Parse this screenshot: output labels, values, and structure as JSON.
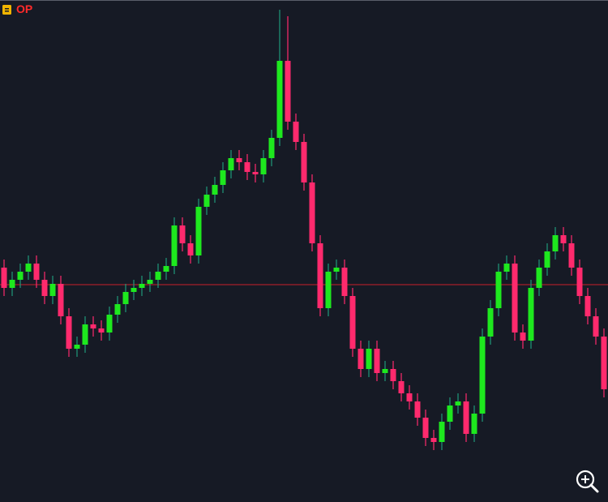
{
  "chart_data": {
    "type": "candlestick",
    "title": "OP",
    "open": [
      290,
      265,
      275,
      285,
      295,
      275,
      255,
      270,
      230,
      190,
      195,
      220,
      215,
      210,
      232,
      245,
      260,
      265,
      270,
      275,
      285,
      292,
      342,
      320,
      305,
      365,
      380,
      392,
      410,
      425,
      420,
      408,
      405,
      425,
      450,
      545,
      470,
      445,
      395,
      320,
      240,
      285,
      290,
      255,
      190,
      165,
      190,
      160,
      165,
      150,
      135,
      125,
      105,
      80,
      75,
      100,
      120,
      125,
      85,
      110,
      205,
      240,
      285,
      295,
      210,
      200,
      265,
      290,
      310,
      330,
      320,
      290,
      255,
      230,
      205
    ],
    "high": [
      300,
      285,
      295,
      305,
      305,
      285,
      280,
      280,
      240,
      205,
      230,
      230,
      225,
      242,
      255,
      270,
      275,
      280,
      285,
      295,
      302,
      352,
      352,
      330,
      375,
      390,
      402,
      420,
      435,
      435,
      430,
      418,
      435,
      460,
      608,
      600,
      480,
      455,
      405,
      330,
      295,
      300,
      300,
      265,
      200,
      200,
      200,
      175,
      175,
      160,
      145,
      135,
      115,
      90,
      110,
      130,
      135,
      135,
      120,
      215,
      250,
      295,
      305,
      305,
      220,
      275,
      300,
      320,
      340,
      340,
      330,
      300,
      265,
      240,
      215
    ],
    "low": [
      255,
      255,
      265,
      275,
      265,
      245,
      245,
      220,
      180,
      180,
      185,
      205,
      200,
      200,
      222,
      235,
      250,
      255,
      260,
      265,
      275,
      282,
      310,
      295,
      295,
      355,
      370,
      382,
      400,
      410,
      398,
      395,
      395,
      415,
      440,
      460,
      435,
      385,
      310,
      230,
      230,
      275,
      245,
      180,
      155,
      155,
      150,
      150,
      140,
      125,
      115,
      95,
      70,
      65,
      65,
      90,
      110,
      75,
      75,
      100,
      195,
      230,
      275,
      200,
      190,
      190,
      255,
      280,
      300,
      310,
      280,
      245,
      220,
      195,
      130
    ],
    "close": [
      265,
      275,
      285,
      295,
      275,
      255,
      270,
      230,
      190,
      195,
      220,
      215,
      210,
      232,
      245,
      260,
      265,
      270,
      275,
      285,
      292,
      342,
      320,
      305,
      365,
      380,
      392,
      410,
      425,
      420,
      408,
      405,
      425,
      450,
      545,
      470,
      445,
      395,
      320,
      240,
      285,
      290,
      255,
      190,
      165,
      190,
      160,
      165,
      150,
      135,
      125,
      105,
      80,
      75,
      100,
      120,
      125,
      85,
      110,
      205,
      240,
      285,
      295,
      210,
      200,
      265,
      290,
      310,
      330,
      320,
      290,
      255,
      230,
      205,
      140
    ],
    "up_color": "#1ee81e",
    "down_color": "#ff2a6d",
    "up_wick_color": "#1f9a7a",
    "down_wick_color": "#ff2a6d",
    "ylim": [
      0,
      620
    ],
    "price_line": 269,
    "price_line_color": "#c8202a"
  }
}
